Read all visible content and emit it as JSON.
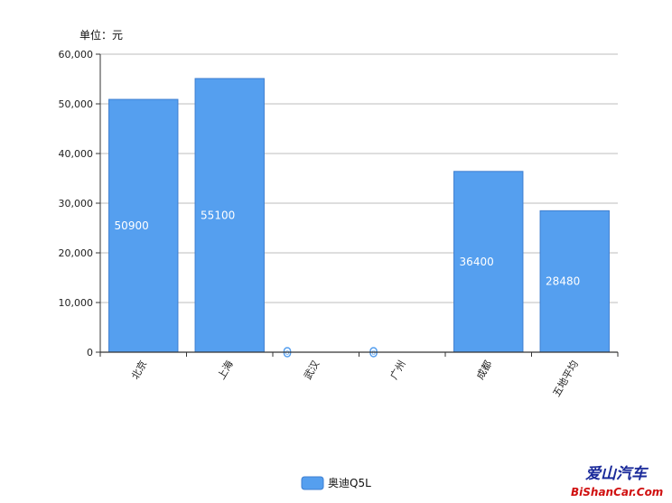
{
  "chart_data": {
    "type": "bar",
    "unit_label": "单位：元",
    "categories": [
      "北京",
      "上海",
      "武汉",
      "广州",
      "成都",
      "五地平均"
    ],
    "series": [
      {
        "name": "奥迪Q5L",
        "values": [
          50900,
          55100,
          0,
          0,
          36400,
          28480
        ],
        "color": "#559fef"
      }
    ],
    "data_labels": [
      "50900",
      "55100",
      "0",
      "0",
      "36400",
      "28480"
    ],
    "yticks": [
      "0",
      "10,000",
      "20,000",
      "30,000",
      "40,000",
      "50,000",
      "60,000"
    ],
    "ylim": [
      0,
      60000
    ],
    "grid": true,
    "legend_position": "bottom-center"
  },
  "watermark": {
    "cn": "爱山汽车",
    "en": "BiShanCar.Com"
  }
}
